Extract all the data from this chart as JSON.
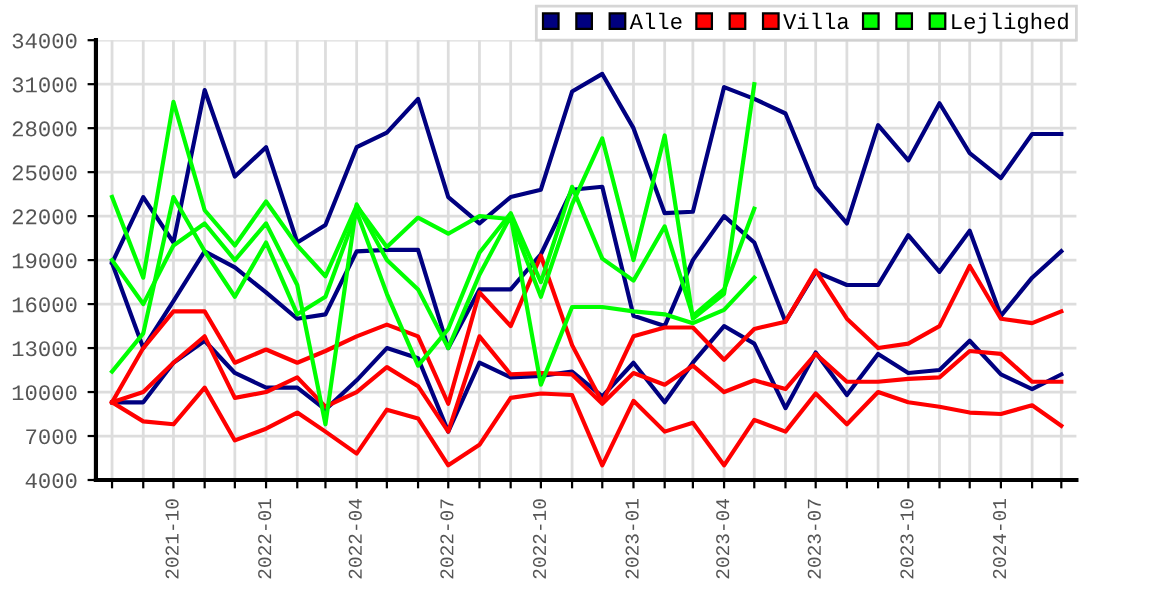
{
  "chart_data": {
    "type": "line",
    "x": [
      "2021-08",
      "2021-09",
      "2021-10",
      "2021-11",
      "2021-12",
      "2022-01",
      "2022-02",
      "2022-03",
      "2022-04",
      "2022-05",
      "2022-06",
      "2022-07",
      "2022-08",
      "2022-09",
      "2022-10",
      "2022-11",
      "2022-12",
      "2023-01",
      "2023-02",
      "2023-03",
      "2023-04",
      "2023-05",
      "2023-06",
      "2023-07",
      "2023-08",
      "2023-09",
      "2023-10",
      "2023-11",
      "2023-12",
      "2024-01",
      "2024-02",
      "2024-03"
    ],
    "series": [
      {
        "color": "#000080",
        "values": [
          18800,
          23300,
          20200,
          30600,
          24700,
          26700,
          20200,
          21400,
          26700,
          27700,
          30000,
          23300,
          21500,
          23300,
          23800,
          30500,
          31700,
          28000,
          22200,
          22300,
          30800,
          30000,
          29000,
          24000,
          21500,
          28200,
          25800,
          29700,
          26300,
          24600,
          27600,
          27600
        ]
      },
      {
        "color": "#000080",
        "values": [
          18800,
          13000,
          16200,
          19600,
          18500,
          16800,
          15000,
          15300,
          19600,
          19700,
          19700,
          13000,
          17000,
          17000,
          19400,
          23800,
          24000,
          15200,
          14500,
          19000,
          22000,
          20200,
          14800,
          18200,
          17300,
          17300,
          20700,
          18200,
          21000,
          15200,
          17800,
          19600
        ]
      },
      {
        "name": "Alle",
        "color": "#000080",
        "values": [
          9300,
          9300,
          12000,
          13500,
          11300,
          10300,
          10300,
          8800,
          10800,
          13000,
          12300,
          7300,
          12000,
          11000,
          11100,
          11400,
          9700,
          12000,
          9300,
          12000,
          14500,
          13300,
          8900,
          12700,
          9800,
          12600,
          11300,
          11500,
          13500,
          11200,
          10200,
          11200
        ]
      },
      {
        "color": "#ff0000",
        "values": [
          9300,
          13000,
          15500,
          15500,
          12000,
          12900,
          12000,
          12800,
          13800,
          14600,
          13800,
          9200,
          16800,
          14500,
          19300,
          13200,
          9300,
          13800,
          14400,
          14400,
          12200,
          14300,
          14800,
          18300,
          15000,
          13000,
          13300,
          14500,
          18600,
          15000,
          14700,
          15500
        ]
      },
      {
        "color": "#ff0000",
        "values": [
          9300,
          10000,
          12000,
          13800,
          9600,
          10000,
          11000,
          9000,
          10000,
          11700,
          10400,
          7300,
          13800,
          11200,
          11300,
          11200,
          9200,
          11300,
          10500,
          11800,
          10000,
          10800,
          10200,
          12600,
          10700,
          10700,
          10900,
          11000,
          12800,
          12600,
          10700,
          10700
        ]
      },
      {
        "name": "Villa",
        "color": "#ff0000",
        "values": [
          9300,
          8000,
          7800,
          10300,
          6700,
          7500,
          8600,
          7300,
          5800,
          8800,
          8200,
          5000,
          6400,
          9600,
          9900,
          9800,
          5000,
          9400,
          7300,
          7900,
          5000,
          8100,
          7300,
          9900,
          7800,
          10000,
          9300,
          9000,
          8600,
          8500,
          9100,
          7700
        ]
      },
      {
        "color": "#00ff00",
        "values": [
          23300,
          17800,
          29800,
          22400,
          20000,
          23000,
          20000,
          17900,
          22700,
          19900,
          21900,
          20800,
          22000,
          21800,
          16500,
          22800,
          27300,
          19000,
          27500,
          15000,
          16700,
          31000,
          null,
          null,
          null,
          null,
          null,
          null,
          null,
          null,
          null,
          null
        ]
      },
      {
        "color": "#00ff00",
        "values": [
          11400,
          14000,
          23300,
          19600,
          16500,
          20200,
          15300,
          16500,
          22300,
          16700,
          11800,
          14300,
          19500,
          22200,
          17500,
          24000,
          19100,
          17600,
          21300,
          15200,
          17000,
          22500,
          null,
          null,
          null,
          null,
          null,
          null,
          null,
          null,
          null,
          null
        ]
      },
      {
        "name": "Lejlighed",
        "color": "#00ff00",
        "values": [
          19000,
          16000,
          20000,
          21500,
          19000,
          21500,
          17300,
          7800,
          22800,
          19000,
          17000,
          13000,
          18000,
          22000,
          10500,
          15800,
          15800,
          15500,
          15300,
          14700,
          15600,
          17800,
          null,
          null,
          null,
          null,
          null,
          null,
          null,
          null,
          null,
          null
        ]
      }
    ],
    "xlim": [
      "2021-07-16",
      "2024-03-16"
    ],
    "xticks": [
      {
        "value": "2021-08",
        "label": null
      },
      {
        "value": "2021-09",
        "label": null
      },
      {
        "value": "2021-10",
        "label": "2021-10"
      },
      {
        "value": "2021-11",
        "label": null
      },
      {
        "value": "2021-12",
        "label": null
      },
      {
        "value": "2022-01",
        "label": "2022-01"
      },
      {
        "value": "2022-02",
        "label": null
      },
      {
        "value": "2022-03",
        "label": null
      },
      {
        "value": "2022-04",
        "label": "2022-04"
      },
      {
        "value": "2022-05",
        "label": null
      },
      {
        "value": "2022-06",
        "label": null
      },
      {
        "value": "2022-07",
        "label": "2022-07"
      },
      {
        "value": "2022-08",
        "label": null
      },
      {
        "value": "2022-09",
        "label": null
      },
      {
        "value": "2022-10",
        "label": "2022-10"
      },
      {
        "value": "2022-11",
        "label": null
      },
      {
        "value": "2022-12",
        "label": null
      },
      {
        "value": "2023-01",
        "label": "2023-01"
      },
      {
        "value": "2023-02",
        "label": null
      },
      {
        "value": "2023-03",
        "label": null
      },
      {
        "value": "2023-04",
        "label": "2023-04"
      },
      {
        "value": "2023-05",
        "label": null
      },
      {
        "value": "2023-06",
        "label": null
      },
      {
        "value": "2023-07",
        "label": "2023-07"
      },
      {
        "value": "2023-08",
        "label": null
      },
      {
        "value": "2023-09",
        "label": null
      },
      {
        "value": "2023-10",
        "label": "2023-10"
      },
      {
        "value": "2023-11",
        "label": null
      },
      {
        "value": "2023-12",
        "label": null
      },
      {
        "value": "2024-01",
        "label": "2024-01"
      },
      {
        "value": "2024-02",
        "label": null
      },
      {
        "value": "2024-03",
        "label": null
      }
    ],
    "ylim": [
      4000,
      34000
    ],
    "yticks": [
      4000,
      7000,
      10000,
      13000,
      16000,
      19000,
      22000,
      25000,
      28000,
      31000,
      34000
    ],
    "grid": true,
    "legend": "top right",
    "marker": "none",
    "line_style": "solid"
  }
}
